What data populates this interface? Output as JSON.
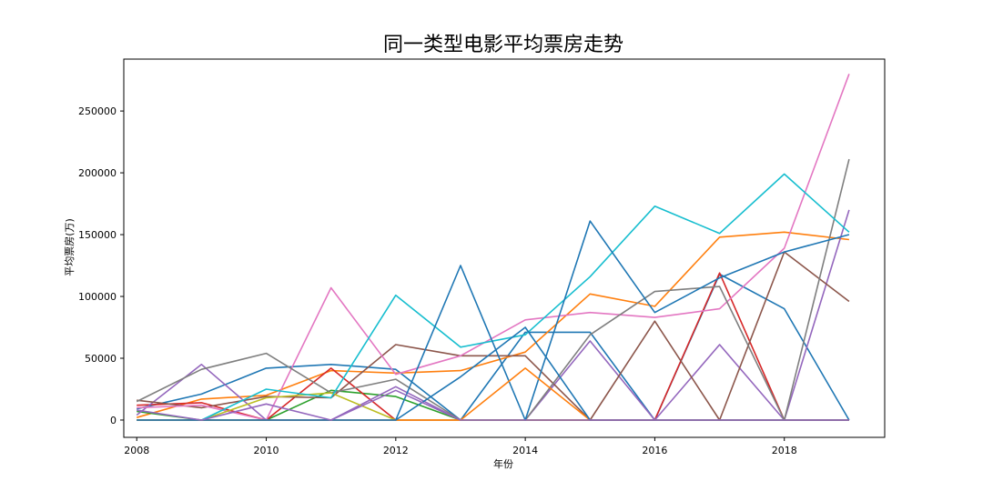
{
  "chart_data": {
    "type": "line",
    "title": "同一类型电影平均票房走势",
    "xlabel": "年份",
    "ylabel": "平均票房(万)",
    "xlim": [
      2007.8,
      2019.55
    ],
    "ylim": [
      -14000,
      292000
    ],
    "x_ticks": [
      2008,
      2010,
      2012,
      2014,
      2016,
      2018
    ],
    "x_tick_labels": [
      "2008",
      "2010",
      "2012",
      "2014",
      "2016",
      "2018"
    ],
    "y_ticks": [
      0,
      50000,
      100000,
      150000,
      200000,
      250000
    ],
    "y_tick_labels": [
      "0",
      "50000",
      "100000",
      "150000",
      "200000",
      "250000"
    ],
    "grid": false,
    "legend": "none",
    "x": [
      2008,
      2009,
      2010,
      2011,
      2012,
      2013,
      2014,
      2015,
      2016,
      2017,
      2018,
      2019
    ],
    "series": [
      {
        "color": "#1f77b4",
        "values": [
          9000,
          21000,
          42000,
          45000,
          41000,
          0,
          71000,
          71000,
          0,
          118000,
          90000,
          0
        ]
      },
      {
        "color": "#ff7f0e",
        "values": [
          2000,
          17000,
          20000,
          40000,
          38000,
          40000,
          55000,
          102000,
          92000,
          148000,
          152000,
          146000
        ]
      },
      {
        "color": "#2ca02c",
        "values": [
          7000,
          0,
          0,
          24000,
          19000,
          0,
          0,
          0,
          0,
          0,
          0,
          0
        ]
      },
      {
        "color": "#d62728",
        "values": [
          12000,
          14000,
          0,
          42000,
          0,
          0,
          0,
          0,
          0,
          119000,
          0,
          0
        ]
      },
      {
        "color": "#9467bd",
        "values": [
          4000,
          45000,
          0,
          0,
          27000,
          0,
          0,
          64000,
          0,
          61000,
          0,
          170000
        ]
      },
      {
        "color": "#8c564b",
        "values": [
          16000,
          10000,
          19000,
          18000,
          61000,
          52000,
          52000,
          0,
          80000,
          0,
          136000,
          96000
        ]
      },
      {
        "color": "#e377c2",
        "values": [
          10000,
          12000,
          0,
          107000,
          37000,
          52000,
          81000,
          87000,
          83000,
          90000,
          139000,
          280000
        ]
      },
      {
        "color": "#7f7f7f",
        "values": [
          15000,
          41000,
          54000,
          22000,
          33000,
          0,
          0,
          69000,
          104000,
          108000,
          0,
          211000
        ]
      },
      {
        "color": "#bcbd22",
        "values": [
          0,
          0,
          18000,
          22000,
          0,
          0,
          0,
          0,
          0,
          0,
          0,
          0
        ]
      },
      {
        "color": "#17becf",
        "values": [
          0,
          0,
          25000,
          18000,
          101000,
          59000,
          69000,
          116000,
          173000,
          151000,
          199000,
          152000
        ]
      },
      {
        "color": "#1f77b4",
        "values": [
          0,
          0,
          0,
          0,
          0,
          125000,
          0,
          161000,
          87000,
          115000,
          136000,
          150000
        ]
      },
      {
        "color": "#ff7f0e",
        "values": [
          0,
          0,
          0,
          0,
          0,
          0,
          42000,
          0,
          0,
          0,
          0,
          0
        ]
      },
      {
        "color": "#1f77b4",
        "values": [
          0,
          0,
          0,
          0,
          0,
          35000,
          75000,
          0,
          0,
          0,
          0,
          0
        ]
      },
      {
        "color": "#9467bd",
        "values": [
          8000,
          0,
          13000,
          0,
          24000,
          0,
          0,
          0,
          0,
          0,
          0,
          0
        ]
      }
    ]
  }
}
